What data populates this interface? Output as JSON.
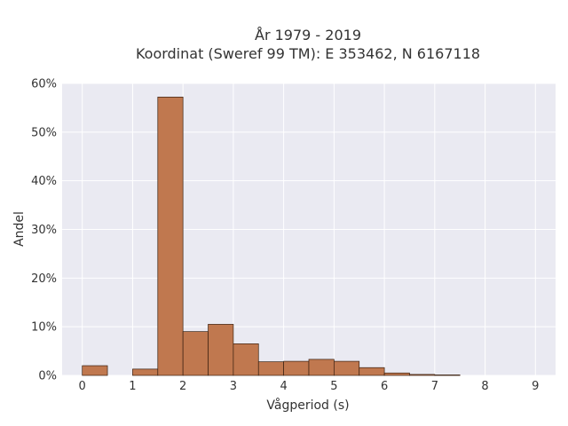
{
  "chart_data": {
    "type": "bar",
    "title_lines": [
      "År 1979 - 2019",
      "Koordinat (Sweref 99 TM): E 353462, N 6167118"
    ],
    "xlabel": "Vågperiod (s)",
    "ylabel": "Andel",
    "x_ticks": [
      "0",
      "1",
      "2",
      "3",
      "4",
      "5",
      "6",
      "7",
      "8",
      "9"
    ],
    "y_ticks": [
      "0%",
      "10%",
      "20%",
      "30%",
      "40%",
      "50%",
      "60%"
    ],
    "xlim": [
      -0.4,
      9.4
    ],
    "ylim": [
      0,
      60
    ],
    "bin_width": 0.5,
    "bins": [
      {
        "x0": 0.0,
        "value": 2.0
      },
      {
        "x0": 0.5,
        "value": 0.0
      },
      {
        "x0": 1.0,
        "value": 1.3
      },
      {
        "x0": 1.5,
        "value": 57.2
      },
      {
        "x0": 2.0,
        "value": 9.0
      },
      {
        "x0": 2.5,
        "value": 10.5
      },
      {
        "x0": 3.0,
        "value": 6.5
      },
      {
        "x0": 3.5,
        "value": 2.8
      },
      {
        "x0": 4.0,
        "value": 2.9
      },
      {
        "x0": 4.5,
        "value": 3.3
      },
      {
        "x0": 5.0,
        "value": 2.9
      },
      {
        "x0": 5.5,
        "value": 1.6
      },
      {
        "x0": 6.0,
        "value": 0.5
      },
      {
        "x0": 6.5,
        "value": 0.2
      },
      {
        "x0": 7.0,
        "value": 0.1
      }
    ],
    "grid": true,
    "colors": {
      "bar": "#c0784f",
      "bar_edge": "#3a2010",
      "background": "#eaeaf2",
      "grid": "#ffffff"
    }
  }
}
